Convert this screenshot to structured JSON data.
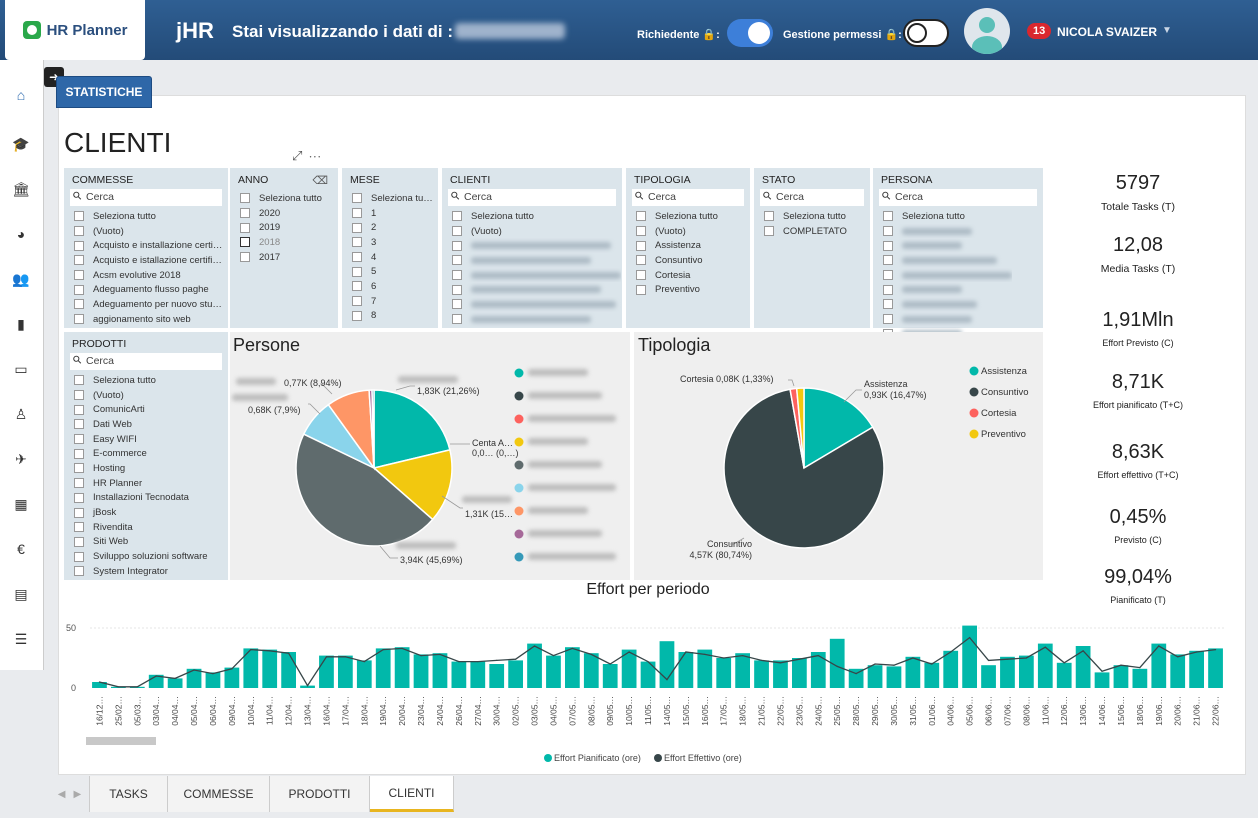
{
  "header": {
    "brand": "HR Planner",
    "app_title": "jHR",
    "viewing_label": "Stai visualizzando i dati di :",
    "toggle_richiedente": "Richiedente 🔒:",
    "toggle_permessi": "Gestione permessi 🔒:",
    "notifications": "13",
    "user_name": "NICOLA SVAIZER"
  },
  "sidebar": {
    "icons": [
      "home-icon",
      "graduation-cap-icon",
      "bank-icon",
      "pie-chart-icon",
      "users-icon",
      "ticket-icon",
      "credit-card-icon",
      "person-icon",
      "plane-icon",
      "calendar-icon",
      "euro-icon",
      "document-icon",
      "list-icon"
    ]
  },
  "stat_tab": "STATISTICHE",
  "page_title": "CLIENTI",
  "slicers": {
    "commesse": {
      "title": "COMMESSE",
      "search": "Cerca",
      "items": [
        "Seleziona tutto",
        "(Vuoto)",
        "Acquisto e installazione certi…",
        "Acquisto e istallazione certifi…",
        "Acsm evolutive 2018",
        "Adeguamento flusso paghe",
        "Adeguamento per nuovo stu…",
        "aggionamento sito web"
      ]
    },
    "anno": {
      "title": "ANNO",
      "items": [
        "Seleziona tutto",
        "2020",
        "2019",
        "2018",
        "2017"
      ]
    },
    "mese": {
      "title": "MESE",
      "items": [
        "Seleziona tu…",
        "1",
        "2",
        "3",
        "4",
        "5",
        "6",
        "7",
        "8"
      ]
    },
    "clienti": {
      "title": "CLIENTI",
      "search": "Cerca",
      "items": [
        "Seleziona tutto",
        "(Vuoto)"
      ]
    },
    "tipologia": {
      "title": "TIPOLOGIA",
      "search": "Cerca",
      "items": [
        "Seleziona tutto",
        "(Vuoto)",
        "Assistenza",
        "Consuntivo",
        "Cortesia",
        "Preventivo"
      ]
    },
    "stato": {
      "title": "STATO",
      "search": "Cerca",
      "items": [
        "Seleziona tutto",
        "COMPLETATO"
      ]
    },
    "persona": {
      "title": "PERSONA",
      "search": "Cerca",
      "items": [
        "Seleziona tutto"
      ]
    },
    "prodotti": {
      "title": "PRODOTTI",
      "search": "Cerca",
      "items": [
        "Seleziona tutto",
        "(Vuoto)",
        "ComunicArti",
        "Dati Web",
        "Easy WIFI",
        "E-commerce",
        "Hosting",
        "HR Planner",
        "Installazioni Tecnodata",
        "jBosk",
        "Rivendita",
        "Siti Web",
        "Sviluppo soluzioni software",
        "System Integrator"
      ]
    }
  },
  "kpis": [
    {
      "value": "5797",
      "label": "Totale Tasks (T)"
    },
    {
      "value": "12,08",
      "label": "Media Tasks (T)"
    },
    {
      "value": "1,91Mln",
      "label": "Effort Previsto (C)"
    },
    {
      "value": "8,71K",
      "label": "Effort pianificato (T+C)"
    },
    {
      "value": "8,63K",
      "label": "Effort effettivo (T+C)"
    },
    {
      "value": "0,45%",
      "label": "Previsto (C)"
    },
    {
      "value": "99,04%",
      "label": "Pianificato (T)"
    }
  ],
  "chart_data": [
    {
      "type": "pie",
      "title": "Persone",
      "slices": [
        {
          "label": "1,83K (21,26%)",
          "value": 21.26,
          "color": "#01b8aa"
        },
        {
          "label": "1,31K (15…",
          "value": 15.2,
          "color": "#f2c80f"
        },
        {
          "label": "3,94K (45,69%)",
          "value": 45.69,
          "color": "#5f6b6d"
        },
        {
          "label": "0,68K (7,9%)",
          "value": 7.9,
          "color": "#8ad4eb"
        },
        {
          "label": "0,77K (8,94%)",
          "value": 8.94,
          "color": "#fe9666"
        },
        {
          "label": "",
          "value": 0.6,
          "color": "#a66999"
        },
        {
          "label": "",
          "value": 0.4,
          "color": "#3599b8"
        }
      ],
      "extra_labels": [
        "Centa A…",
        "0,0… (0,…)"
      ],
      "legend_colors": [
        "#01b8aa",
        "#374649",
        "#fd625e",
        "#f2c80f",
        "#5f6b6d",
        "#8ad4eb",
        "#fe9666",
        "#a66999",
        "#3599b8"
      ]
    },
    {
      "type": "pie",
      "title": "Tipologia",
      "slices": [
        {
          "name": "Assistenza",
          "label": "0,93K (16,47%)",
          "value": 16.47,
          "color": "#01b8aa"
        },
        {
          "name": "Consuntivo",
          "label": "4,57K (80,74%)",
          "value": 80.74,
          "color": "#374649"
        },
        {
          "name": "Cortesia",
          "label": "Cortesia 0,08K (1,33%)",
          "value": 1.33,
          "color": "#fd625e"
        },
        {
          "name": "Preventivo",
          "label": "",
          "value": 1.46,
          "color": "#f2c80f"
        }
      ],
      "legend": [
        "Assistenza",
        "Consuntivo",
        "Cortesia",
        "Preventivo"
      ]
    },
    {
      "type": "bar",
      "title": "Effort per periodo",
      "y_ticks": [
        "50",
        "0"
      ],
      "ylim": [
        0,
        60
      ],
      "categories": [
        "16/12…",
        "25/02…",
        "05/03…",
        "03/04…",
        "04/04…",
        "05/04…",
        "06/04…",
        "09/04…",
        "10/04…",
        "11/04…",
        "12/04…",
        "13/04…",
        "16/04…",
        "17/04…",
        "18/04…",
        "19/04…",
        "20/04…",
        "23/04…",
        "24/04…",
        "26/04…",
        "27/04…",
        "30/04…",
        "02/05…",
        "03/05…",
        "04/05…",
        "07/05…",
        "08/05…",
        "09/05…",
        "10/05…",
        "11/05…",
        "14/05…",
        "15/05…",
        "16/05…",
        "17/05…",
        "18/05…",
        "21/05…",
        "22/05…",
        "23/05…",
        "24/05…",
        "25/05…",
        "28/05…",
        "29/05…",
        "30/05…",
        "31/05…",
        "01/06…",
        "04/06…",
        "05/06…",
        "06/06…",
        "07/06…",
        "08/06…",
        "11/06…",
        "12/06…",
        "13/06…",
        "14/06…",
        "15/06…",
        "18/06…",
        "19/06…",
        "20/06…",
        "21/06…",
        "22/06…"
      ],
      "series": [
        {
          "name": "Effort Pianificato (ore)",
          "color": "#01b8aa",
          "values": [
            5,
            1,
            1,
            11,
            8,
            16,
            13,
            17,
            33,
            32,
            30,
            2,
            27,
            27,
            23,
            33,
            34,
            28,
            29,
            22,
            22,
            20,
            23,
            37,
            27,
            34,
            29,
            20,
            32,
            22,
            39,
            30,
            32,
            25,
            29,
            23,
            23,
            25,
            30,
            41,
            16,
            19,
            18,
            26,
            21,
            31,
            52,
            19,
            26,
            27,
            37,
            21,
            35,
            13,
            19,
            16,
            37,
            28,
            31,
            33
          ]
        },
        {
          "name": "Effort Effettivo (ore)",
          "color": "#374649",
          "values": [
            5,
            1,
            1,
            10,
            8,
            15,
            12,
            16,
            32,
            31,
            29,
            2,
            26,
            26,
            22,
            32,
            33,
            27,
            28,
            22,
            22,
            23,
            24,
            35,
            27,
            33,
            28,
            20,
            30,
            22,
            7,
            30,
            28,
            25,
            27,
            23,
            21,
            24,
            27,
            18,
            12,
            20,
            19,
            25,
            20,
            30,
            42,
            23,
            24,
            25,
            34,
            21,
            31,
            14,
            19,
            17,
            35,
            26,
            30,
            32
          ]
        }
      ]
    }
  ],
  "bottom_tabs": [
    "TASKS",
    "COMMESSE",
    "PRODOTTI",
    "CLIENTI"
  ]
}
